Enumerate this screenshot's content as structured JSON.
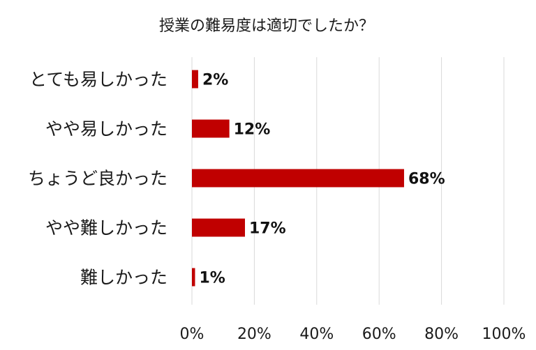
{
  "chart_data": {
    "type": "bar",
    "orientation": "horizontal",
    "title": "授業の難易度は適切でしたか？",
    "categories": [
      "とても易しかった",
      "やや易しかった",
      "ちょうど良かった",
      "やや難しかった",
      "難しかった"
    ],
    "values": [
      2,
      12,
      68,
      17,
      1
    ],
    "data_labels": [
      "2%",
      "12%",
      "68%",
      "17%",
      "1%"
    ],
    "value_unit": "%",
    "xlim": [
      0,
      100
    ],
    "x_ticks": [
      0,
      20,
      40,
      60,
      80,
      100
    ],
    "x_tick_labels": [
      "0%",
      "20%",
      "40%",
      "60%",
      "80%",
      "100%"
    ],
    "xlabel": "",
    "ylabel": "",
    "grid": true,
    "legend": "none",
    "bar_color": "#c00000",
    "grid_color": "#d9d9d9"
  }
}
